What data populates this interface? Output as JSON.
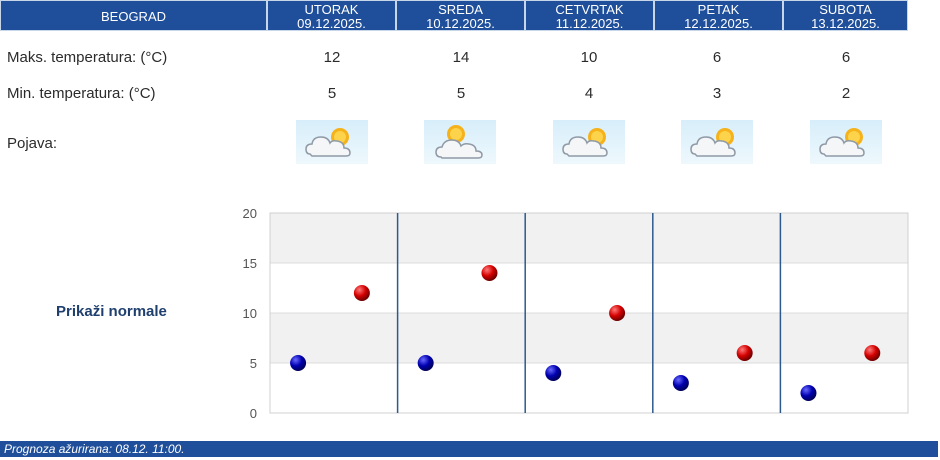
{
  "header": {
    "city": "BEOGRAD",
    "days": [
      {
        "day": "UTORAK",
        "date": "09.12.2025."
      },
      {
        "day": "SREDA",
        "date": "10.12.2025."
      },
      {
        "day": "CETVRTAK",
        "date": "11.12.2025."
      },
      {
        "day": "PETAK",
        "date": "12.12.2025."
      },
      {
        "day": "SUBOTA",
        "date": "13.12.2025."
      }
    ]
  },
  "rows": {
    "max_label": "Maks. temperatura: (°C)",
    "min_label": "Min. temperatura: (°C)",
    "phenomenon_label": "Pojava:",
    "max_values": [
      "12",
      "14",
      "10",
      "6",
      "6"
    ],
    "min_values": [
      "5",
      "5",
      "4",
      "3",
      "2"
    ],
    "phenomenon_icons": [
      "partly-cloudy-icon",
      "cloud-sun-icon",
      "partly-cloudy-icon",
      "partly-cloudy-icon",
      "partly-cloudy-icon"
    ]
  },
  "normals_label": "Prikaži normale",
  "chart_data": {
    "type": "scatter",
    "categories": [
      "UTORAK",
      "SREDA",
      "CETVRTAK",
      "PETAK",
      "SUBOTA"
    ],
    "ylim": [
      0,
      20
    ],
    "yticks": [
      0,
      5,
      10,
      15,
      20
    ],
    "series": [
      {
        "values": [
          5,
          5,
          4,
          3,
          2
        ],
        "color": "#0000b0"
      },
      {
        "values": [
          12,
          14,
          10,
          6,
          6
        ],
        "color": "#d40000"
      }
    ],
    "grid": true
  },
  "footer": {
    "text": "Prognoza ažurirana:  08.12. 11:00."
  }
}
